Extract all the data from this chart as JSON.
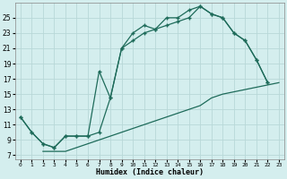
{
  "xlabel": "Humidex (Indice chaleur)",
  "bg_color": "#d4eeee",
  "grid_color": "#b8d8d8",
  "line_color": "#1e6b5a",
  "xlim": [
    -0.5,
    23.5
  ],
  "ylim": [
    6.5,
    27.0
  ],
  "xticks": [
    0,
    1,
    2,
    3,
    4,
    5,
    6,
    7,
    8,
    9,
    10,
    11,
    12,
    13,
    14,
    15,
    16,
    17,
    18,
    19,
    20,
    21,
    22,
    23
  ],
  "yticks": [
    7,
    9,
    11,
    13,
    15,
    17,
    19,
    21,
    23,
    25
  ],
  "line1_x": [
    0,
    1,
    2,
    3,
    4,
    5,
    6,
    7,
    8,
    9,
    10,
    11,
    12,
    13,
    14,
    15,
    16,
    17,
    18,
    19,
    20,
    21,
    22,
    23
  ],
  "line1_y": [
    12.0,
    10.0,
    8.5,
    8.0,
    9.5,
    9.5,
    9.5,
    18.0,
    14.5,
    21.0,
    23.0,
    24.0,
    23.5,
    25.0,
    25.0,
    26.0,
    26.5,
    25.5,
    25.0,
    23.0,
    22.0,
    19.5,
    16.5,
    null
  ],
  "line2_x": [
    0,
    1,
    2,
    3,
    4,
    5,
    6,
    7,
    8,
    9,
    10,
    11,
    12,
    13,
    14,
    15,
    16,
    17,
    18,
    19,
    20,
    21,
    22,
    23
  ],
  "line2_y": [
    12.0,
    10.0,
    8.5,
    8.0,
    9.5,
    9.5,
    9.5,
    10.0,
    14.5,
    21.0,
    22.0,
    23.0,
    23.5,
    24.0,
    24.5,
    25.0,
    26.5,
    25.5,
    25.0,
    23.0,
    22.0,
    19.5,
    16.5,
    null
  ],
  "line3_x": [
    2,
    3,
    4,
    5,
    6,
    7,
    8,
    9,
    10,
    11,
    12,
    13,
    14,
    15,
    16,
    17,
    18,
    23
  ],
  "line3_y": [
    7.5,
    7.5,
    7.5,
    8.0,
    8.5,
    9.0,
    9.5,
    10.0,
    10.5,
    11.0,
    11.5,
    12.0,
    12.5,
    13.0,
    13.5,
    14.5,
    15.0,
    16.5
  ]
}
